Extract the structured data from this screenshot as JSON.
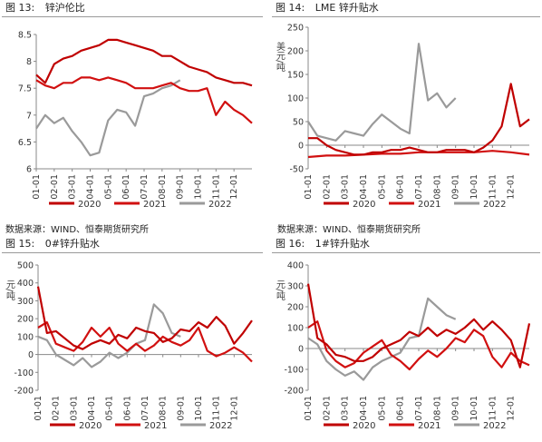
{
  "panels": [
    {
      "figure": "图 13:",
      "title": "锌沪伦比",
      "source": ""
    },
    {
      "figure": "图 14:",
      "title": "LME 锌升贴水",
      "source": ""
    },
    {
      "figure": "图 15:",
      "title": "0#锌升贴水",
      "source": "数据来源：WIND、恒泰期货研究所"
    },
    {
      "figure": "图 16:",
      "title": "1#锌升贴水",
      "source": "数据来源：WIND、恒泰期货研究所"
    }
  ],
  "colors": {
    "y2020": "#c00000",
    "y2021": "#d11010",
    "y2022": "#9a9a9a"
  },
  "chart_data": [
    {
      "type": "line",
      "title": "锌沪伦比",
      "ylabel": "",
      "categories": [
        "01-01",
        "02-01",
        "03-01",
        "04-01",
        "05-01",
        "06-01",
        "07-01",
        "08-01",
        "09-01",
        "10-01",
        "11-01",
        "12-01"
      ],
      "ylim": [
        6,
        8.5
      ],
      "yticks": [
        "6",
        "6.5",
        "7",
        "7.5",
        "8",
        "8.5"
      ],
      "legend": [
        "2020",
        "2021",
        "2022"
      ],
      "series": [
        {
          "name": "2020",
          "x": [
            0,
            0.5,
            1,
            1.5,
            2,
            2.5,
            3,
            3.5,
            4,
            4.5,
            5,
            5.5,
            6,
            6.5,
            7,
            7.5,
            8,
            8.5,
            9,
            9.5,
            10,
            10.5,
            11,
            11.5,
            12
          ],
          "values": [
            7.75,
            7.6,
            7.95,
            8.05,
            8.1,
            8.2,
            8.25,
            8.3,
            8.4,
            8.4,
            8.35,
            8.3,
            8.25,
            8.2,
            8.1,
            8.1,
            8.0,
            7.9,
            7.85,
            7.8,
            7.7,
            7.65,
            7.6,
            7.6,
            7.55
          ]
        },
        {
          "name": "2021",
          "x": [
            0,
            0.5,
            1,
            1.5,
            2,
            2.5,
            3,
            3.5,
            4,
            4.5,
            5,
            5.5,
            6,
            6.5,
            7,
            7.5,
            8,
            8.5,
            9,
            9.5,
            10,
            10.5,
            11,
            11.5,
            12
          ],
          "values": [
            7.65,
            7.55,
            7.5,
            7.6,
            7.6,
            7.7,
            7.7,
            7.65,
            7.7,
            7.65,
            7.6,
            7.5,
            7.5,
            7.5,
            7.55,
            7.6,
            7.5,
            7.45,
            7.45,
            7.5,
            7.0,
            7.25,
            7.1,
            7.0,
            6.85
          ]
        },
        {
          "name": "2022",
          "x": [
            0,
            0.5,
            1,
            1.5,
            2,
            2.5,
            3,
            3.5,
            4,
            4.5,
            5,
            5.5,
            6,
            6.5,
            7,
            7.5,
            8
          ],
          "values": [
            6.75,
            7.0,
            6.85,
            6.95,
            6.7,
            6.5,
            6.25,
            6.3,
            6.9,
            7.1,
            7.05,
            6.8,
            7.35,
            7.4,
            7.5,
            7.55,
            7.65
          ]
        }
      ]
    },
    {
      "type": "line",
      "title": "LME 锌升贴水",
      "ylabel": "美元/吨",
      "categories": [
        "01-01",
        "02-01",
        "03-01",
        "04-01",
        "05-01",
        "06-01",
        "07-01",
        "08-01",
        "09-01",
        "10-01",
        "11-01",
        "12-01"
      ],
      "ylim": [
        -50,
        250
      ],
      "yticks": [
        "-50",
        "0",
        "50",
        "100",
        "150",
        "200",
        "250"
      ],
      "legend": [
        "2020",
        "2021",
        "2022"
      ],
      "series": [
        {
          "name": "2020",
          "x": [
            0,
            0.5,
            1,
            1.5,
            2,
            2.5,
            3,
            3.5,
            4,
            4.5,
            5,
            5.5,
            6,
            6.5,
            7,
            7.5,
            8,
            8.5,
            9,
            9.5,
            10,
            10.5,
            11,
            11.5,
            12
          ],
          "values": [
            15,
            15,
            0,
            -10,
            -15,
            -20,
            -20,
            -15,
            -15,
            -10,
            -10,
            -5,
            -10,
            -15,
            -15,
            -10,
            -10,
            -10,
            -15,
            -5,
            10,
            40,
            130,
            40,
            55
          ]
        },
        {
          "name": "2021",
          "x": [
            0,
            1,
            2,
            3,
            4,
            5,
            6,
            7,
            8,
            9,
            10,
            11,
            12
          ],
          "values": [
            -25,
            -22,
            -22,
            -20,
            -18,
            -18,
            -15,
            -15,
            -15,
            -15,
            -12,
            -15,
            -20
          ]
        },
        {
          "name": "2022",
          "x": [
            0,
            0.5,
            1,
            1.5,
            2,
            2.5,
            3,
            3.5,
            4,
            4.5,
            5,
            5.5,
            6,
            6.5,
            7,
            7.5,
            8
          ],
          "values": [
            50,
            20,
            15,
            10,
            30,
            25,
            20,
            45,
            65,
            50,
            35,
            25,
            215,
            95,
            110,
            80,
            100
          ]
        }
      ]
    },
    {
      "type": "line",
      "title": "0#锌升贴水",
      "ylabel": "元/吨",
      "categories": [
        "01-01",
        "02-01",
        "03-01",
        "04-01",
        "05-01",
        "06-01",
        "07-01",
        "08-01",
        "09-01",
        "10-01",
        "11-01",
        "12-01"
      ],
      "ylim": [
        -200,
        500
      ],
      "yticks": [
        "-200",
        "-100",
        "0",
        "100",
        "200",
        "300",
        "400",
        "500"
      ],
      "legend": [
        "2020",
        "2021",
        "2022"
      ],
      "series": [
        {
          "name": "2020",
          "x": [
            0,
            0.5,
            1,
            1.5,
            2,
            2.5,
            3,
            3.5,
            4,
            4.5,
            5,
            5.5,
            6,
            6.5,
            7,
            7.5,
            8,
            8.5,
            9,
            9.5,
            10,
            10.5,
            11,
            11.5,
            12
          ],
          "values": [
            380,
            120,
            130,
            90,
            50,
            30,
            60,
            80,
            60,
            110,
            90,
            150,
            130,
            120,
            70,
            90,
            140,
            130,
            180,
            150,
            210,
            160,
            60,
            120,
            190
          ]
        },
        {
          "name": "2021",
          "x": [
            0,
            0.5,
            1,
            1.5,
            2,
            2.5,
            3,
            3.5,
            4,
            4.5,
            5,
            5.5,
            6,
            6.5,
            7,
            7.5,
            8,
            8.5,
            9,
            9.5,
            10,
            10.5,
            11,
            11.5,
            12
          ],
          "values": [
            150,
            180,
            60,
            40,
            20,
            70,
            150,
            100,
            150,
            60,
            20,
            60,
            20,
            50,
            100,
            70,
            50,
            80,
            150,
            20,
            -10,
            10,
            40,
            10,
            -40
          ]
        },
        {
          "name": "2022",
          "x": [
            0,
            0.5,
            1,
            1.5,
            2,
            2.5,
            3,
            3.5,
            4,
            4.5,
            5,
            5.5,
            6,
            6.5,
            7,
            7.5,
            8
          ],
          "values": [
            100,
            80,
            0,
            -30,
            -60,
            -20,
            -70,
            -40,
            10,
            -20,
            10,
            60,
            80,
            280,
            230,
            120,
            100
          ]
        }
      ]
    },
    {
      "type": "line",
      "title": "1#锌升贴水",
      "ylabel": "元/吨",
      "categories": [
        "01-01",
        "02-01",
        "03-01",
        "04-01",
        "05-01",
        "06-01",
        "07-01",
        "08-01",
        "09-01",
        "10-01",
        "11-01",
        "12-01"
      ],
      "ylim": [
        -200,
        400
      ],
      "yticks": [
        "-200",
        "-100",
        "0",
        "100",
        "200",
        "300",
        "400"
      ],
      "legend": [
        "2020",
        "2021",
        "2022"
      ],
      "series": [
        {
          "name": "2020",
          "x": [
            0,
            0.5,
            1,
            1.5,
            2,
            2.5,
            3,
            3.5,
            4,
            4.5,
            5,
            5.5,
            6,
            6.5,
            7,
            7.5,
            8,
            8.5,
            9,
            9.5,
            10,
            10.5,
            11,
            11.5,
            12
          ],
          "values": [
            310,
            50,
            20,
            -30,
            -40,
            -60,
            -60,
            -40,
            0,
            20,
            40,
            80,
            60,
            100,
            60,
            90,
            70,
            100,
            140,
            90,
            130,
            90,
            40,
            -90,
            120
          ]
        },
        {
          "name": "2021",
          "x": [
            0,
            0.5,
            1,
            1.5,
            2,
            2.5,
            3,
            3.5,
            4,
            4.5,
            5,
            5.5,
            6,
            6.5,
            7,
            7.5,
            8,
            8.5,
            9,
            9.5,
            10,
            10.5,
            11,
            11.5,
            12
          ],
          "values": [
            100,
            130,
            -10,
            -60,
            -90,
            -70,
            -20,
            10,
            40,
            -30,
            -60,
            -100,
            -50,
            -10,
            -40,
            0,
            50,
            30,
            90,
            60,
            -40,
            -90,
            -20,
            -60,
            -80
          ]
        },
        {
          "name": "2022",
          "x": [
            0,
            0.5,
            1,
            1.5,
            2,
            2.5,
            3,
            3.5,
            4,
            4.5,
            5,
            5.5,
            6,
            6.5,
            7,
            7.5,
            8
          ],
          "values": [
            50,
            20,
            -60,
            -100,
            -130,
            -110,
            -150,
            -90,
            -60,
            -40,
            -20,
            50,
            60,
            240,
            200,
            160,
            140
          ]
        }
      ]
    }
  ]
}
